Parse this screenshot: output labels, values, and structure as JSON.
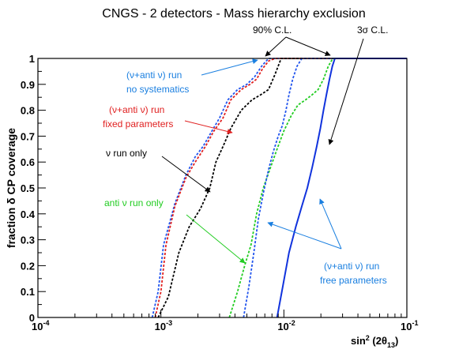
{
  "chart_data": {
    "type": "line",
    "title": "CNGS - 2 detectors - Mass hierarchy exclusion",
    "xlabel": "sin² (2θ₁₃)",
    "ylabel": "fraction δ CP coverage",
    "xscale": "log",
    "xlim": [
      0.0001,
      0.1
    ],
    "ylim": [
      0,
      1
    ],
    "x_ticks": [
      {
        "value": 0.0001,
        "base": "10",
        "exp": "-4"
      },
      {
        "value": 0.001,
        "base": "10",
        "exp": "-3"
      },
      {
        "value": 0.01,
        "base": "10",
        "exp": "-2"
      },
      {
        "value": 0.1,
        "base": "10",
        "exp": "-1"
      }
    ],
    "y_ticks": [
      "0",
      "0.1",
      "0.2",
      "0.3",
      "0.4",
      "0.5",
      "0.6",
      "0.7",
      "0.8",
      "0.9",
      "1"
    ],
    "series": [
      {
        "group": "90%",
        "color": "#2255ee",
        "dash": "dotted",
        "x": [
          0.00085,
          0.00095,
          0.00105,
          0.0013,
          0.0016,
          0.0019,
          0.0022,
          0.0026,
          0.003,
          0.0035,
          0.0042,
          0.005,
          0.0058,
          0.0066,
          0.0075,
          0.0085,
          0.1
        ],
        "y": [
          0,
          0.1,
          0.28,
          0.44,
          0.55,
          0.62,
          0.66,
          0.72,
          0.77,
          0.84,
          0.88,
          0.9,
          0.93,
          0.97,
          1.0,
          1.0,
          1.0
        ]
      },
      {
        "group": "90%",
        "color": "#e02020",
        "dash": "dotted",
        "x": [
          0.0009,
          0.001,
          0.0011,
          0.0013,
          0.0016,
          0.0019,
          0.0023,
          0.0027,
          0.0032,
          0.0037,
          0.0045,
          0.0053,
          0.006,
          0.0067,
          0.0075,
          0.0085,
          0.1
        ],
        "y": [
          0,
          0.1,
          0.28,
          0.43,
          0.54,
          0.6,
          0.66,
          0.72,
          0.77,
          0.84,
          0.88,
          0.9,
          0.92,
          0.96,
          0.99,
          1.0,
          1.0
        ]
      },
      {
        "group": "90%",
        "color": "#000000",
        "dash": "dotted",
        "x": [
          0.00095,
          0.00115,
          0.0014,
          0.0017,
          0.0021,
          0.0025,
          0.0028,
          0.0032,
          0.0037,
          0.0045,
          0.0055,
          0.0065,
          0.0075,
          0.0085,
          0.0095,
          0.0105,
          0.1
        ],
        "y": [
          0,
          0.08,
          0.25,
          0.35,
          0.42,
          0.5,
          0.6,
          0.66,
          0.73,
          0.8,
          0.84,
          0.86,
          0.88,
          0.94,
          1.0,
          1.0,
          1.0
        ]
      },
      {
        "group": "90%",
        "color": "#22cc22",
        "dash": "dotted",
        "x": [
          0.0036,
          0.0042,
          0.0048,
          0.0054,
          0.006,
          0.0068,
          0.0078,
          0.0088,
          0.01,
          0.0115,
          0.013,
          0.015,
          0.017,
          0.019,
          0.021,
          0.023,
          0.025,
          0.1
        ],
        "y": [
          0,
          0.1,
          0.2,
          0.28,
          0.4,
          0.5,
          0.58,
          0.65,
          0.72,
          0.78,
          0.82,
          0.84,
          0.86,
          0.88,
          0.92,
          0.97,
          1.0,
          1.0
        ]
      },
      {
        "group": "90%",
        "color": "#2255ee",
        "dash": "dotted",
        "x": [
          0.0047,
          0.0052,
          0.0057,
          0.0062,
          0.0068,
          0.0075,
          0.0082,
          0.009,
          0.0097,
          0.0104,
          0.011,
          0.0118,
          0.0128,
          0.014,
          0.0152,
          0.1
        ],
        "y": [
          0,
          0.12,
          0.25,
          0.38,
          0.48,
          0.57,
          0.64,
          0.7,
          0.74,
          0.8,
          0.86,
          0.92,
          0.97,
          1.0,
          1.0,
          1.0
        ]
      },
      {
        "group": "3σ",
        "color": "#1133dd",
        "dash": "solid",
        "x": [
          0.0088,
          0.0098,
          0.011,
          0.0125,
          0.014,
          0.0155,
          0.017,
          0.0185,
          0.0198,
          0.021,
          0.0222,
          0.0235,
          0.0248,
          0.026,
          0.028,
          0.1
        ],
        "y": [
          0,
          0.12,
          0.25,
          0.35,
          0.43,
          0.5,
          0.58,
          0.66,
          0.73,
          0.8,
          0.86,
          0.92,
          0.97,
          1.0,
          1.0,
          1.0
        ]
      }
    ],
    "annotations": [
      {
        "id": "cl90",
        "text": "90% C.L.",
        "color": "#000000"
      },
      {
        "id": "cl3s",
        "text": "3σ C.L.",
        "color": "#000000"
      },
      {
        "id": "nosys1",
        "text": "(ν+anti ν) run",
        "color": "#1a7fe0"
      },
      {
        "id": "nosys2",
        "text": "no systematics",
        "color": "#1a7fe0"
      },
      {
        "id": "fixed1",
        "text": "(ν+anti ν) run",
        "color": "#e02020"
      },
      {
        "id": "fixed2",
        "text": "fixed parameters",
        "color": "#e02020"
      },
      {
        "id": "nuonly",
        "text": "ν run only",
        "color": "#000000"
      },
      {
        "id": "antinu",
        "text": "anti ν run only",
        "color": "#22cc22"
      },
      {
        "id": "free1",
        "text": "(ν+anti ν) run",
        "color": "#1a7fe0"
      },
      {
        "id": "free2",
        "text": "free parameters",
        "color": "#1a7fe0"
      }
    ],
    "grid": false,
    "legend": "none"
  }
}
